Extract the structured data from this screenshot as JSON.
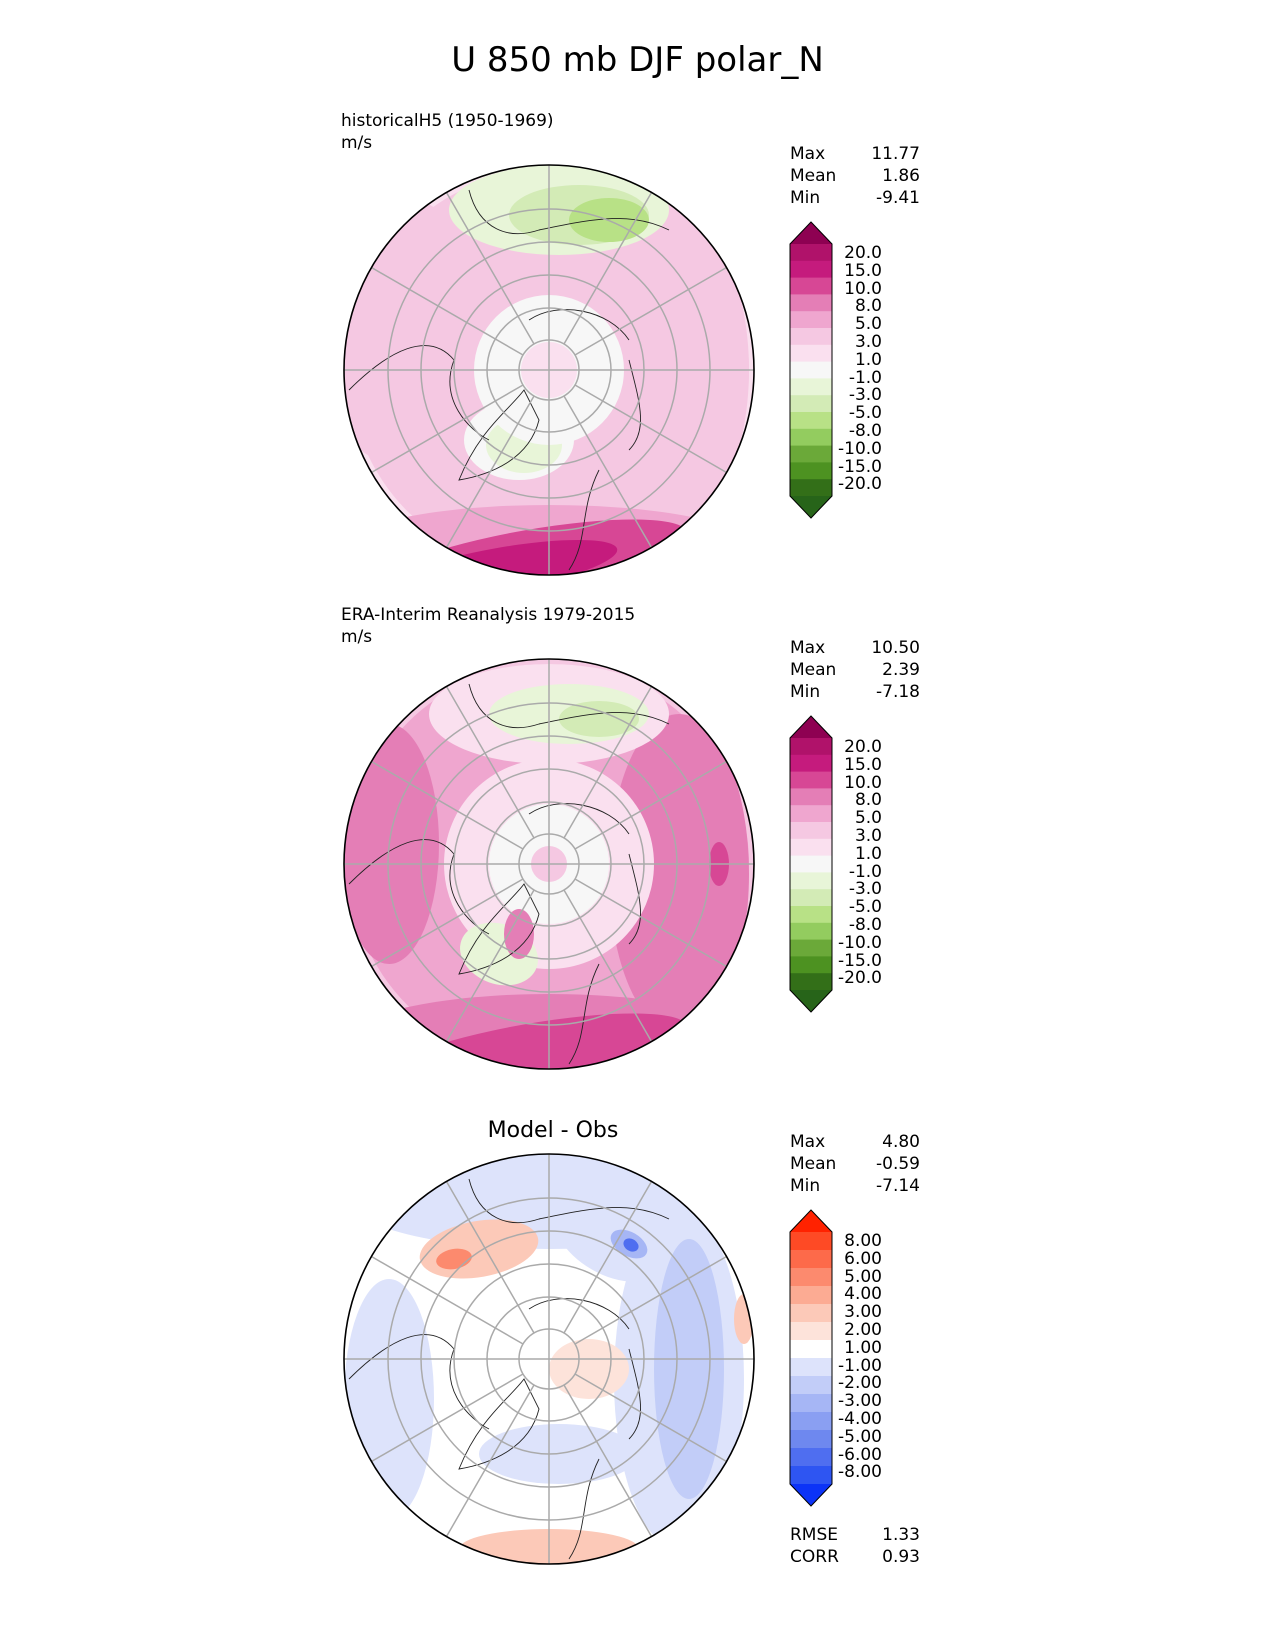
{
  "figure": {
    "title": "U 850 mb DJF polar_N"
  },
  "chart_data": [
    {
      "type": "heatmap",
      "projection": "north-polar-stereographic",
      "title": "historicalH5 (1950-1969)",
      "units": "m/s",
      "stats": [
        {
          "label": "Max",
          "value": "11.77"
        },
        {
          "label": "Mean",
          "value": "1.86"
        },
        {
          "label": "Min",
          "value": "-9.41"
        }
      ],
      "colorbar": {
        "levels": [
          "20.0",
          "15.0",
          "10.0",
          "8.0",
          "5.0",
          "3.0",
          "1.0",
          "-1.0",
          "-3.0",
          "-5.0",
          "-8.0",
          "-10.0",
          "-15.0",
          "-20.0"
        ],
        "colors": [
          "#8e0152",
          "#b0126a",
          "#c51b7d",
          "#d74795",
          "#e47eb6",
          "#efa6cf",
          "#f5c8e2",
          "#fae0ef",
          "#f7f7f7",
          "#e8f5d8",
          "#d3ebb6",
          "#b8e186",
          "#93cc5f",
          "#6ba939",
          "#4d9221",
          "#336f18",
          "#276419"
        ],
        "extend": "both"
      }
    },
    {
      "type": "heatmap",
      "projection": "north-polar-stereographic",
      "title": "ERA-Interim Reanalysis 1979-2015",
      "units": "m/s",
      "stats": [
        {
          "label": "Max",
          "value": "10.50"
        },
        {
          "label": "Mean",
          "value": "2.39"
        },
        {
          "label": "Min",
          "value": "-7.18"
        }
      ],
      "colorbar": {
        "levels": [
          "20.0",
          "15.0",
          "10.0",
          "8.0",
          "5.0",
          "3.0",
          "1.0",
          "-1.0",
          "-3.0",
          "-5.0",
          "-8.0",
          "-10.0",
          "-15.0",
          "-20.0"
        ],
        "colors": [
          "#8e0152",
          "#b0126a",
          "#c51b7d",
          "#d74795",
          "#e47eb6",
          "#efa6cf",
          "#f5c8e2",
          "#fae0ef",
          "#f7f7f7",
          "#e8f5d8",
          "#d3ebb6",
          "#b8e186",
          "#93cc5f",
          "#6ba939",
          "#4d9221",
          "#336f18",
          "#276419"
        ],
        "extend": "both"
      }
    },
    {
      "type": "heatmap",
      "projection": "north-polar-stereographic",
      "title": "Model - Obs",
      "stats": [
        {
          "label": "Max",
          "value": "4.80"
        },
        {
          "label": "Mean",
          "value": "-0.59"
        },
        {
          "label": "Min",
          "value": "-7.14"
        }
      ],
      "extra_stats": [
        {
          "label": "RMSE",
          "value": "1.33"
        },
        {
          "label": "CORR",
          "value": "0.93"
        }
      ],
      "colorbar": {
        "levels": [
          "8.00",
          "6.00",
          "5.00",
          "4.00",
          "3.00",
          "2.00",
          "1.00",
          "-1.00",
          "-2.00",
          "-3.00",
          "-4.00",
          "-5.00",
          "-6.00",
          "-8.00"
        ],
        "colors": [
          "#ff2200",
          "#fe4a25",
          "#fd6a4a",
          "#fc8a6e",
          "#fcab93",
          "#fcc9b8",
          "#fde3da",
          "#ffffff",
          "#dde3fb",
          "#c2cdf8",
          "#a6b6f5",
          "#8a9ff2",
          "#6e88ef",
          "#4f6ef0",
          "#2e55f2",
          "#0c33f7"
        ],
        "extend": "both"
      }
    }
  ]
}
